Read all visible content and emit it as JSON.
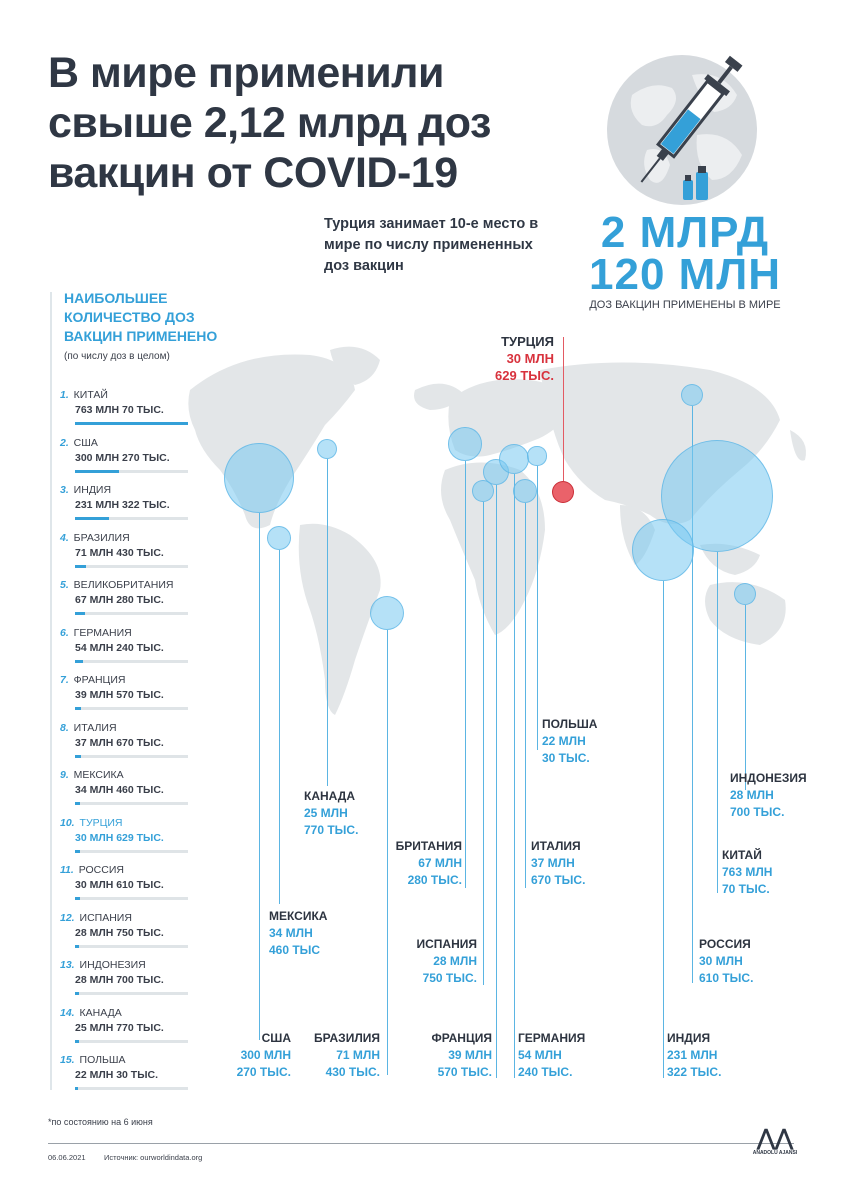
{
  "title": "В мире применили свыше 2,12 млрд доз вакцин от COVID-19",
  "subtitle": "Турция занимает 10-е место в мире по числу примененных доз вакцин",
  "total": {
    "line1": "2 МЛРД",
    "line2": "120 МЛН",
    "label": "ДОЗ ВАКЦИН ПРИМЕНЕНЫ В МИРЕ"
  },
  "ranking": {
    "header": "НАИБОЛЬШЕЕ КОЛИЧЕСТВО ДОЗ ВАКЦИН ПРИМЕНЕНО",
    "note": "(по числу доз в целом)"
  },
  "chart_data": {
    "type": "bar",
    "title": "НАИБОЛЬШЕЕ КОЛИЧЕСТВО ДОЗ ВАКЦИН ПРИМЕНЕНО",
    "categories": [
      "КИТАЙ",
      "США",
      "ИНДИЯ",
      "БРАЗИЛИЯ",
      "ВЕЛИКОБРИТАНИЯ",
      "ГЕРМАНИЯ",
      "ФРАНЦИЯ",
      "ИТАЛИЯ",
      "МЕКСИКА",
      "ТУРЦИЯ",
      "РОССИЯ",
      "ИСПАНИЯ",
      "ИНДОНЕЗИЯ",
      "КАНАДА",
      "ПОЛЬША"
    ],
    "values": [
      763070000,
      300270000,
      231322000,
      71430000,
      67280000,
      54240000,
      39570000,
      37670000,
      34460000,
      30629000,
      30610000,
      28750000,
      28700000,
      25770000,
      22030000
    ],
    "ranks": [
      "1.",
      "2.",
      "3.",
      "4.",
      "5.",
      "6.",
      "7.",
      "8.",
      "9.",
      "10.",
      "11.",
      "12.",
      "13.",
      "14.",
      "15."
    ],
    "value_labels": [
      "763 МЛН 70 ТЫС.",
      "300 МЛН 270 ТЫС.",
      "231 МЛН 322 ТЫС.",
      "71 МЛН 430 ТЫС.",
      "67 МЛН 280 ТЫС.",
      "54 МЛН 240 ТЫС.",
      "39 МЛН 570 ТЫС.",
      "37 МЛН 670 ТЫС.",
      "34 МЛН 460 ТЫС.",
      "30 МЛН 629 ТЫС.",
      "30 МЛН 610 ТЫС.",
      "28 МЛН 750 ТЫС.",
      "28 МЛН 700 ТЫС.",
      "25 МЛН 770 ТЫС.",
      "22 МЛН 30 ТЫС."
    ],
    "highlight": "ТУРЦИЯ",
    "colors": {
      "accent": "#34a0d8",
      "highlight": "#e0404a",
      "bar_track": "#dfe4e7"
    }
  },
  "map_labels": {
    "turkey": {
      "name": "ТУРЦИЯ",
      "v1": "30 МЛН",
      "v2": "629 ТЫС."
    },
    "poland": {
      "name": "ПОЛЬША",
      "v1": "22 МЛН",
      "v2": "30 ТЫС."
    },
    "indonesia": {
      "name": "ИНДОНЕЗИЯ",
      "v1": "28 МЛН",
      "v2": "700 ТЫС."
    },
    "canada": {
      "name": "КАНАДА",
      "v1": "25 МЛН",
      "v2": "770 ТЫС."
    },
    "britain": {
      "name": "БРИТАНИЯ",
      "v1": "67 МЛН",
      "v2": "280 ТЫС."
    },
    "italy": {
      "name": "ИТАЛИЯ",
      "v1": "37 МЛН",
      "v2": "670 ТЫС."
    },
    "china": {
      "name": "КИТАЙ",
      "v1": "763 МЛН",
      "v2": "70 ТЫС."
    },
    "mexico": {
      "name": "МЕКСИКА",
      "v1": "34 МЛН",
      "v2": "460 ТЫС"
    },
    "spain": {
      "name": "ИСПАНИЯ",
      "v1": "28 МЛН",
      "v2": "750 ТЫС."
    },
    "russia": {
      "name": "РОССИЯ",
      "v1": "30 МЛН",
      "v2": "610 ТЫС."
    },
    "usa": {
      "name": "США",
      "v1": "300 МЛН",
      "v2": "270 ТЫС."
    },
    "brazil": {
      "name": "БРАЗИЛИЯ",
      "v1": "71 МЛН",
      "v2": "430 ТЫС."
    },
    "france": {
      "name": "ФРАНЦИЯ",
      "v1": "39 МЛН",
      "v2": "570 ТЫС."
    },
    "germany": {
      "name": "ГЕРМАНИЯ",
      "v1": "54 МЛН",
      "v2": "240 ТЫС."
    },
    "india": {
      "name": "ИНДИЯ",
      "v1": "231 МЛН",
      "v2": "322 ТЫС."
    }
  },
  "footnote": "*по состоянию на 6 июня",
  "footer": {
    "date": "06.06.2021",
    "source": "Источник: ourworldindata.org",
    "logo_text": "ANADOLU AJANSI"
  }
}
